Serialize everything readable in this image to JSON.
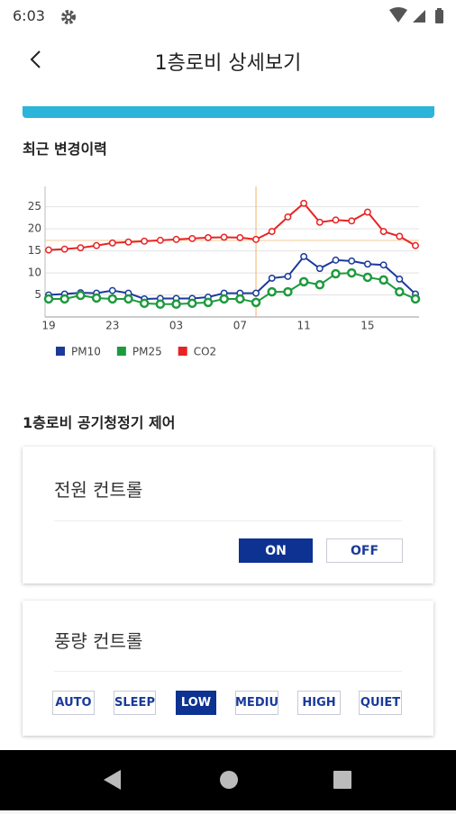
{
  "status_bar": {
    "time": "6:03"
  },
  "header": {
    "title": "1층로비 상세보기"
  },
  "chart_data": {
    "type": "line",
    "title": "최근 변경이력",
    "categories": [
      "19",
      null,
      null,
      null,
      "23",
      null,
      null,
      null,
      "03",
      null,
      null,
      null,
      "07",
      null,
      null,
      null,
      "11",
      null,
      null,
      null,
      "15",
      null,
      null,
      null
    ],
    "series": [
      {
        "name": "PM10",
        "color": "#1a3a9a",
        "values": [
          5,
          5.2,
          5.5,
          5.4,
          6,
          5.4,
          4.1,
          4.2,
          4.2,
          4.2,
          4.5,
          5.4,
          5.4,
          5.4,
          8.8,
          9.2,
          13.7,
          11,
          12.9,
          12.7,
          12,
          11.8,
          8.6,
          5.2
        ]
      },
      {
        "name": "PM25",
        "color": "#1e9a3e",
        "values": [
          4.1,
          4.1,
          4.9,
          4.3,
          4.1,
          4.1,
          3.1,
          2.9,
          2.9,
          3.1,
          3.3,
          4.1,
          4.1,
          3.3,
          5.7,
          5.7,
          8,
          7.3,
          9.8,
          10,
          9,
          8.4,
          5.7,
          4.1
        ]
      },
      {
        "name": "CO2",
        "color": "#e82323",
        "values": [
          15.2,
          15.4,
          15.7,
          16.2,
          16.8,
          17,
          17.2,
          17.4,
          17.6,
          17.8,
          18,
          18.1,
          18,
          17.6,
          19.4,
          22.7,
          25.8,
          21.5,
          22,
          21.8,
          23.8,
          19.4,
          18.3,
          16.2
        ]
      }
    ],
    "ylim": [
      0,
      28
    ],
    "yticks": [
      5,
      10,
      15,
      20,
      25
    ],
    "grid": true
  },
  "control": {
    "title": "1층로비 공기청정기 제어",
    "power": {
      "label": "전원 컨트롤",
      "buttons": [
        "ON",
        "OFF"
      ],
      "active": 0
    },
    "fan": {
      "label": "풍량 컨트롤",
      "buttons": [
        "AUTO",
        "SLEEP",
        "LOW",
        "MEDIU",
        "HIGH",
        "QUIET"
      ],
      "active": 2
    }
  }
}
